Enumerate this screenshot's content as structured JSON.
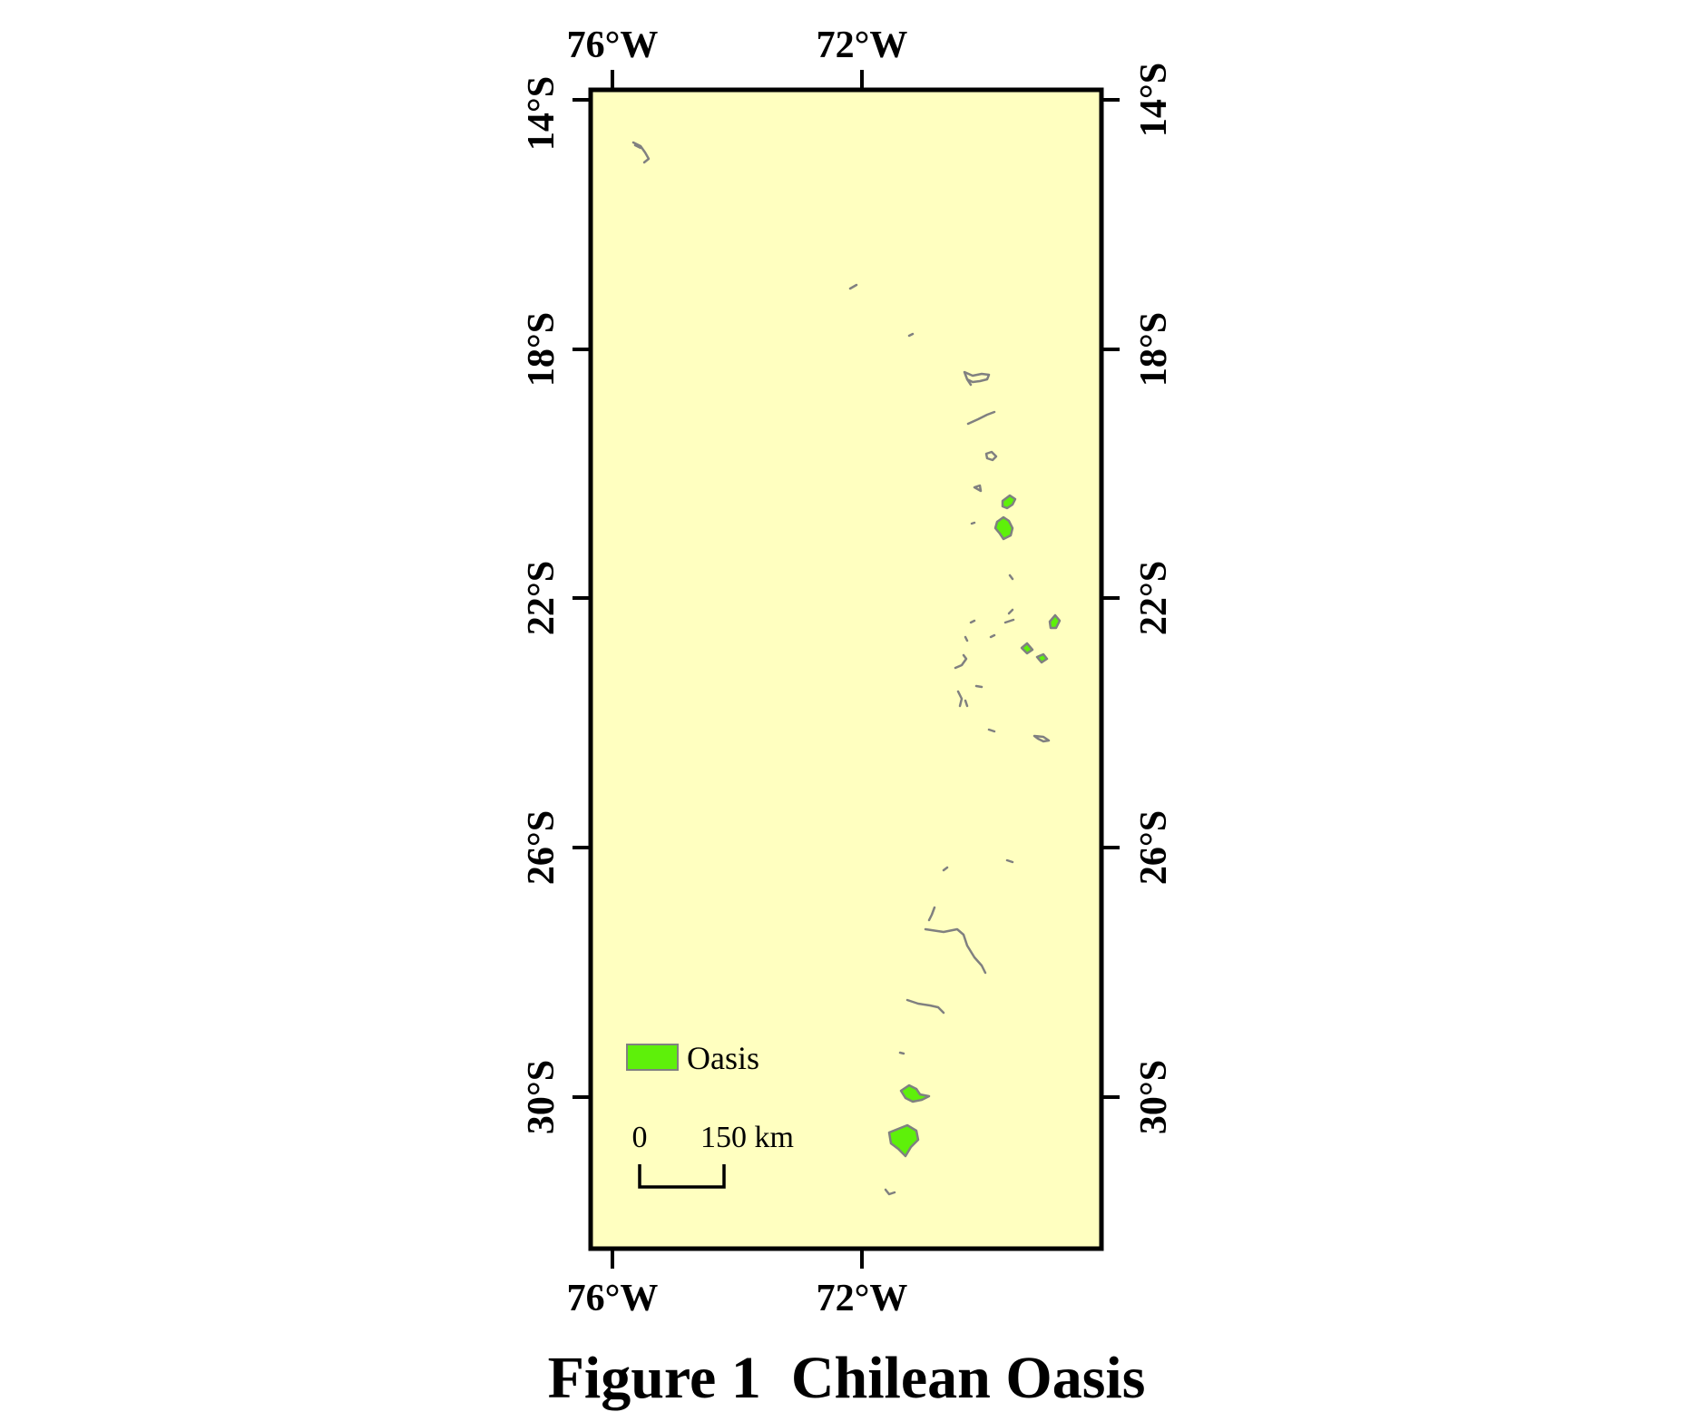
{
  "map": {
    "background_color": "#ffffc0",
    "frame_color": "#000000",
    "longitude_labels": [
      "76°W",
      "72°W"
    ],
    "latitude_labels": [
      "14°S",
      "18°S",
      "22°S",
      "26°S",
      "30°S"
    ],
    "oasis_fill": "#5ef00a",
    "oasis_outline": "#808080"
  },
  "legend": {
    "label": "Oasis",
    "swatch_color": "#5ef00a"
  },
  "scale_bar": {
    "start_label": "0",
    "end_label": "150 km"
  },
  "caption": {
    "text": "Figure 1  Chilean Oasis"
  }
}
